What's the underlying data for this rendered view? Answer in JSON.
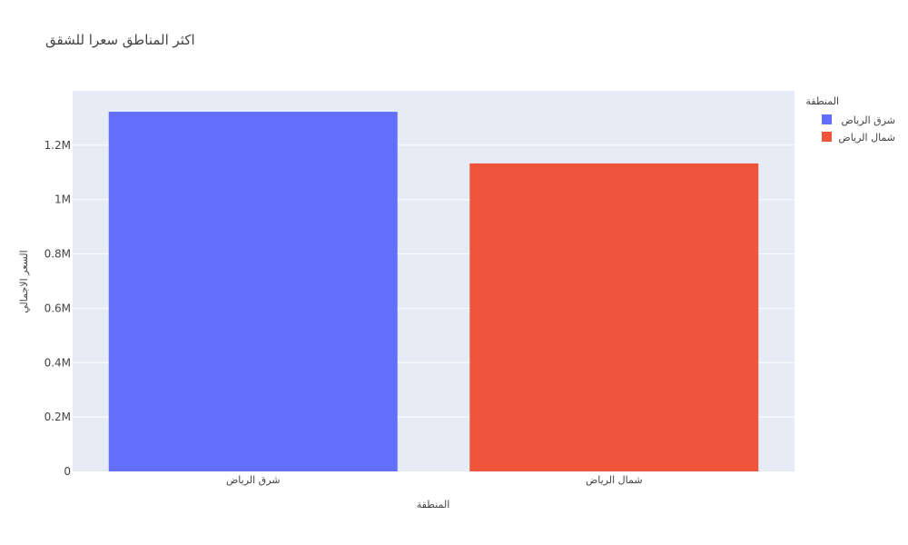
{
  "chart_data": {
    "type": "bar",
    "title": "اكثر المناطق سعرا للشقق",
    "xlabel": "المنطقة",
    "ylabel": "السعر الاجمالي",
    "categories": [
      "شرق الرياض",
      "شمال الرياض"
    ],
    "values": [
      1323000,
      1133000
    ],
    "colors": [
      "#636efa",
      "#ef553b"
    ],
    "ylim": [
      0,
      1400000
    ],
    "yticks": [
      0,
      200000,
      400000,
      600000,
      800000,
      1000000,
      1200000
    ],
    "ytick_labels": [
      "0",
      "0.2M",
      "0.4M",
      "0.6M",
      "0.8M",
      "1M",
      "1.2M"
    ],
    "legend": {
      "title": "المنطقة",
      "position": "top-right",
      "entries": [
        "شرق الرياض",
        "شمال الرياض"
      ]
    },
    "grid": true,
    "plot_bg": "#e5ecf6"
  }
}
